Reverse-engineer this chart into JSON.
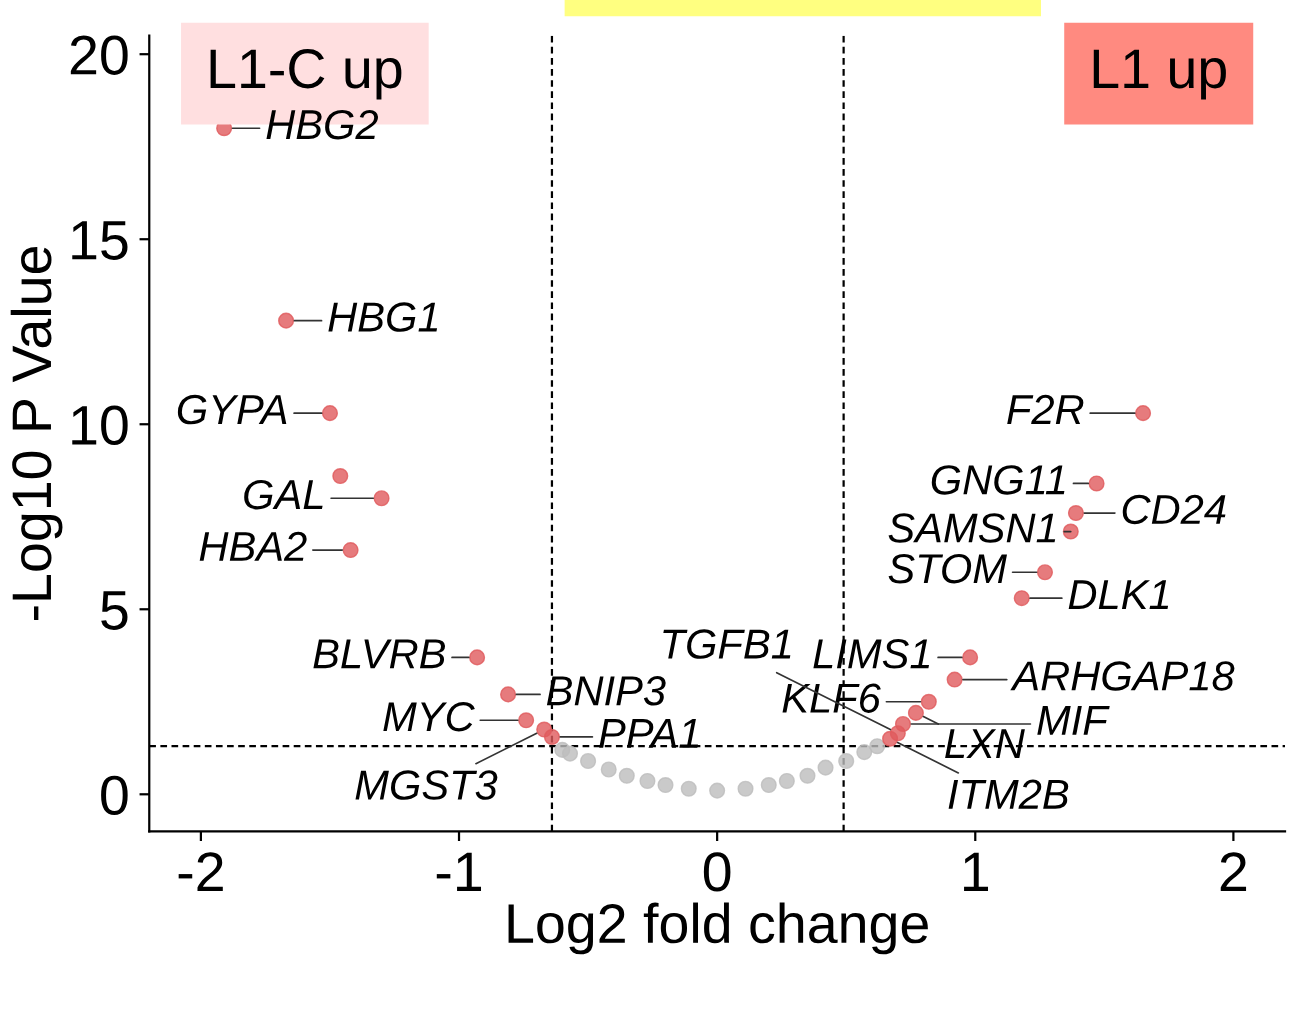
{
  "chart_data": {
    "type": "scatter",
    "xlabel": "Log2 fold change",
    "ylabel": "-Log10 P Value",
    "xlim": [
      -2.2,
      2.2
    ],
    "ylim": [
      -1,
      20.5
    ],
    "xticks": [
      -2,
      -1,
      0,
      1,
      2
    ],
    "yticks": [
      0,
      5,
      10,
      15,
      20
    ],
    "grid": false,
    "legend": false,
    "marker": "circle",
    "series": [
      {
        "color": "#bdbdbd",
        "x": [
          -0.6,
          -0.57,
          -0.5,
          -0.42,
          -0.35,
          -0.27,
          -0.2,
          -0.11,
          0,
          0.11,
          0.2,
          0.27,
          0.35,
          0.42,
          0.5,
          0.57,
          0.62
        ],
        "values": [
          1.2,
          1.1,
          0.9,
          0.67,
          0.5,
          0.36,
          0.25,
          0.15,
          0.1,
          0.15,
          0.25,
          0.36,
          0.5,
          0.72,
          0.9,
          1.14,
          1.3
        ]
      },
      {
        "color": "#e05a5c",
        "x": [
          -1.91,
          -1.67,
          -1.5,
          -1.46,
          -1.3,
          -1.42,
          -0.93,
          -0.81,
          -0.74,
          -0.67,
          -0.64,
          1.65,
          1.47,
          1.39,
          1.37,
          1.27,
          1.18,
          0.98,
          0.92,
          0.82,
          0.77,
          0.72,
          0.67,
          0.7
        ],
        "values": [
          18.0,
          12.8,
          10.3,
          8.6,
          8.0,
          6.6,
          3.7,
          2.7,
          2.0,
          1.75,
          1.55,
          10.3,
          8.4,
          7.6,
          7.1,
          6.0,
          5.3,
          3.7,
          3.1,
          2.5,
          2.2,
          1.9,
          1.5,
          1.65
        ]
      }
    ],
    "ref_lines": [
      {
        "axis": "x",
        "value": -0.64,
        "line_style": "dashed"
      },
      {
        "axis": "x",
        "value": 0.49,
        "line_style": "dashed"
      },
      {
        "axis": "y",
        "value": 1.3,
        "line_style": "dashed"
      }
    ],
    "annotations": [
      "L1-C up",
      "L1 up",
      {
        "text": "HBG2",
        "x": -1.91,
        "y": 18.0
      },
      {
        "text": "HBG1",
        "x": -1.67,
        "y": 12.8
      },
      {
        "text": "GYPA",
        "x": -1.5,
        "y": 10.3
      },
      {
        "text": "GAL",
        "x": -1.3,
        "y": 8.0
      },
      {
        "text": "HBA2",
        "x": -1.42,
        "y": 6.6
      },
      {
        "text": "BLVRB",
        "x": -0.93,
        "y": 3.7
      },
      {
        "text": "MYC",
        "x": -0.74,
        "y": 2.0
      },
      {
        "text": "BNIP3",
        "x": -0.81,
        "y": 2.7
      },
      {
        "text": "MGST3",
        "x": -0.67,
        "y": 1.75
      },
      {
        "text": "PPA1",
        "x": -0.64,
        "y": 1.55
      },
      {
        "text": "F2R",
        "x": 1.65,
        "y": 10.3
      },
      {
        "text": "GNG11",
        "x": 1.47,
        "y": 8.4
      },
      {
        "text": "CD24",
        "x": 1.39,
        "y": 7.6
      },
      {
        "text": "SAMSN1",
        "x": 1.37,
        "y": 7.1
      },
      {
        "text": "STOM",
        "x": 1.27,
        "y": 6.0
      },
      {
        "text": "DLK1",
        "x": 1.18,
        "y": 5.3
      },
      {
        "text": "LIMS1",
        "x": 0.98,
        "y": 3.7
      },
      {
        "text": "ARHGAP18",
        "x": 0.92,
        "y": 3.1
      },
      {
        "text": "KLF6",
        "x": 0.82,
        "y": 2.5
      },
      {
        "text": "LXN",
        "x": 0.77,
        "y": 2.2
      },
      {
        "text": "MIF",
        "x": 0.72,
        "y": 1.9
      },
      {
        "text": "ITM2B",
        "x": 0.67,
        "y": 1.5
      },
      {
        "text": "TGFB1",
        "x": 0.7,
        "y": 1.65
      }
    ]
  }
}
